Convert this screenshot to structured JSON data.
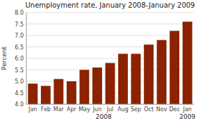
{
  "chart_data": {
    "type": "bar",
    "title": "Unemployment rate, January 2008-January 2009",
    "ylabel": "Percent",
    "annotations": [
      "2008",
      "2009"
    ],
    "categories": [
      "Jan",
      "Feb",
      "Mar",
      "Apr",
      "May",
      "Jun",
      "Jul",
      "Aug",
      "Sep",
      "Oct",
      "Nov",
      "Dec",
      "Jan"
    ],
    "values": [
      4.9,
      4.8,
      5.1,
      5.0,
      5.5,
      5.6,
      5.8,
      6.2,
      6.2,
      6.6,
      6.8,
      7.2,
      7.6
    ],
    "color": "#8B2200",
    "ylim": [
      4.0,
      8.0
    ],
    "yticks": [
      {
        "value": 4.0,
        "label": "4.0"
      },
      4.5,
      {
        "value": 5.0,
        "label": "5.0"
      },
      5.5,
      {
        "value": 6.0,
        "label": "6.0"
      },
      6.5,
      {
        "value": 7.0,
        "label": "7.0"
      },
      7.5,
      {
        "value": 8.0,
        "label": "8.0"
      }
    ],
    "grid": true
  }
}
